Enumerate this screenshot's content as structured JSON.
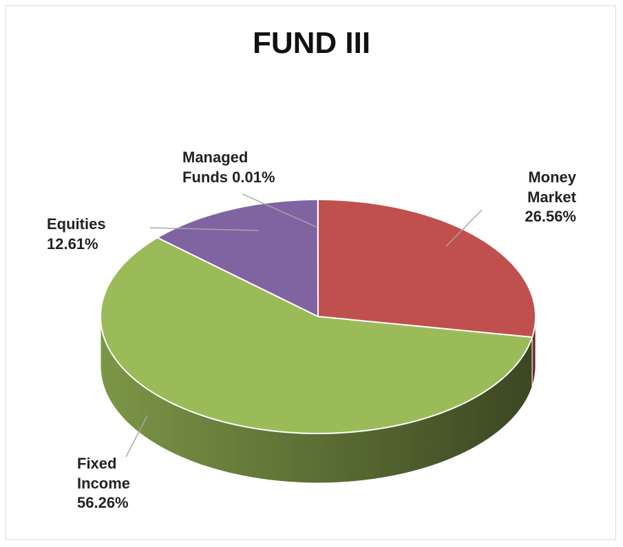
{
  "chart_data": {
    "type": "pie",
    "title": "FUND III",
    "categories": [
      "Money Market",
      "Fixed Income",
      "Equities",
      "Managed Funds"
    ],
    "values": [
      26.56,
      56.26,
      12.61,
      0.01
    ],
    "value_labels": [
      "26.56%",
      "56.26%",
      "12.61%",
      "0.01%"
    ],
    "colors": [
      "#c0504d",
      "#9bbb59",
      "#8064a2",
      "#4f81bd"
    ]
  }
}
